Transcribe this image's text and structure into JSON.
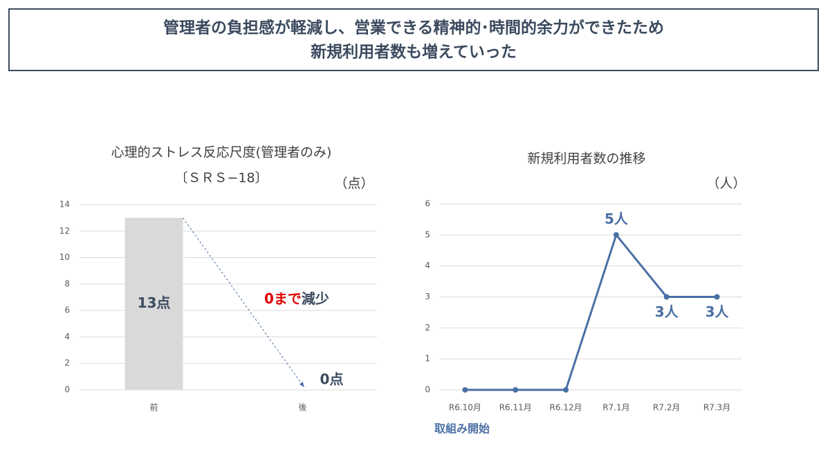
{
  "title_box": {
    "lines": [
      "管理者の負担感が軽減し、営業できる精神的･時間的余力ができたため",
      "新規利用者数も増えていった"
    ]
  },
  "chart_data": [
    {
      "type": "bar",
      "title": "心理的ストレス反応尺度(管理者のみ)",
      "subtitle": "〔ＳＲＳ−18〕",
      "unit": "（点）",
      "categories": [
        "前",
        "後"
      ],
      "values": [
        13,
        0
      ],
      "value_labels": [
        "13点",
        "0点"
      ],
      "color": "#d9d9d9",
      "annotation": {
        "highlight": "0まで",
        "rest": "減少"
      },
      "ylim": [
        0,
        14
      ],
      "yticks": [
        0,
        2,
        4,
        6,
        8,
        10,
        12,
        14
      ],
      "grid": true
    },
    {
      "type": "line",
      "title": "新規利用者数の推移",
      "unit": "（人）",
      "categories": [
        "R6.10月",
        "R6.11月",
        "R6.12月",
        "R7.1月",
        "R7.2月",
        "R7.3月"
      ],
      "values": [
        0,
        0,
        0,
        5,
        3,
        3
      ],
      "value_labels": [
        null,
        null,
        null,
        "5人",
        "3人",
        "3人"
      ],
      "color": "#4a6fa5",
      "annotation": "取組み開始",
      "ylim": [
        0,
        6
      ],
      "yticks": [
        0,
        1,
        2,
        3,
        4,
        5,
        6
      ],
      "grid": true
    }
  ]
}
